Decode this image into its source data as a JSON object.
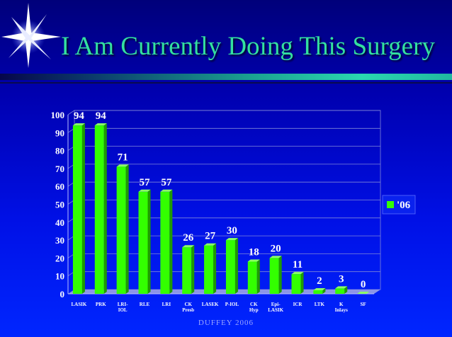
{
  "slide": {
    "title": "I Am Currently Doing This Surgery",
    "footer": "DUFFEY 2006",
    "accent_color": "#33e0a0"
  },
  "chart_data": {
    "type": "bar",
    "categories": [
      [
        "LASIK"
      ],
      [
        "PRK"
      ],
      [
        "LRI-",
        "IOL"
      ],
      [
        "RLE"
      ],
      [
        "LRI"
      ],
      [
        "CK",
        "Presb"
      ],
      [
        "LASEK"
      ],
      [
        "P-IOL"
      ],
      [
        "CK",
        "Hyp"
      ],
      [
        "Epi-",
        "LASIK"
      ],
      [
        "ICR"
      ],
      [
        "LTK"
      ],
      [
        "K",
        "Inlays"
      ],
      [
        "SF"
      ]
    ],
    "series": [
      {
        "name": "'06",
        "values": [
          94,
          94,
          71,
          57,
          57,
          26,
          27,
          30,
          18,
          20,
          11,
          2,
          3,
          0
        ],
        "color": "#33ff00"
      }
    ],
    "yticks": [
      "0",
      "10",
      "20",
      "30",
      "40",
      "50",
      "60",
      "70",
      "80",
      "90",
      "100"
    ],
    "ylim": [
      0,
      100
    ],
    "grid": true,
    "legend": "right"
  }
}
